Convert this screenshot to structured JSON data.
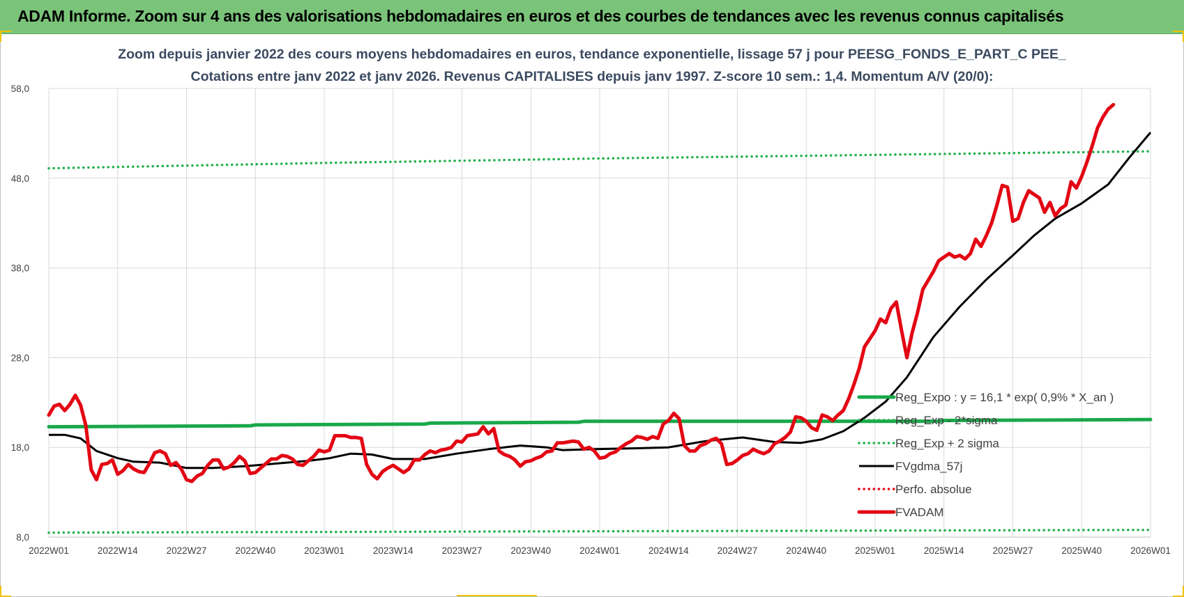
{
  "banner": {
    "title": "ADAM Informe. Zoom sur 4 ans des valorisations hebdomadaires en euros et des courbes de tendances avec les revenus connus capitalisés"
  },
  "colors": {
    "banner_bg": "#7ac47a",
    "subtitle": "#3b4a60",
    "reg_green": "#1aa84a",
    "dot_green": "#22b14c",
    "red": "#e30613",
    "black": "#000000",
    "grid": "#d9d9d9"
  },
  "chart_data": {
    "type": "line",
    "title": [
      "Zoom depuis janvier 2022 des cours moyens hebdomadaires en euros, tendance exponentielle, lissage 57 j pour PEESG_FONDS_E_PART_C PEE_",
      "Cotations entre janv 2022 et janv 2026. Revenus CAPITALISES depuis janv 1997. Z-score 10 sem.: 1,4. Momentum A/V (20/0):"
    ],
    "xlabel": "",
    "ylabel": "",
    "ylim": [
      8,
      58
    ],
    "yticks": [
      "58,0",
      "48,0",
      "38,0",
      "28,0",
      "18,0",
      "8,0"
    ],
    "ytick_values": [
      58,
      48,
      38,
      28,
      18,
      8
    ],
    "xticks": [
      "2022W01",
      "2022W14",
      "2022W27",
      "2022W40",
      "2023W01",
      "2023W14",
      "2023W27",
      "2023W40",
      "2024W01",
      "2024W14",
      "2024W27",
      "2024W40",
      "2025W01",
      "2025W14",
      "2025W27",
      "2025W40",
      "2026W01"
    ],
    "x_range_weeks": [
      0,
      208
    ],
    "grid": true,
    "legend_position": "lower-right",
    "series": [
      {
        "name": "Reg_Expo : y = 16,1 * exp( 0,9% *  X_an )",
        "style": "solid-thick",
        "color": "#1aa84a",
        "points": [
          [
            0,
            20.3
          ],
          [
            38,
            20.4
          ],
          [
            39,
            20.5
          ],
          [
            71,
            20.6
          ],
          [
            72,
            20.7
          ],
          [
            100,
            20.8
          ],
          [
            101,
            20.9
          ],
          [
            168,
            20.9
          ],
          [
            169,
            21.0
          ],
          [
            208,
            21.1
          ]
        ]
      },
      {
        "name": "Reg_Exp - 2*sigma",
        "style": "dotted",
        "color": "#22b14c",
        "points": [
          [
            0,
            8.5
          ],
          [
            208,
            8.8
          ]
        ]
      },
      {
        "name": "Reg_Exp + 2 sigma",
        "style": "dotted",
        "color": "#22b14c",
        "points": [
          [
            0,
            49.1
          ],
          [
            52,
            49.7
          ],
          [
            104,
            50.2
          ],
          [
            156,
            50.6
          ],
          [
            208,
            51.0
          ]
        ]
      },
      {
        "name": "FVgdma_57j",
        "style": "solid",
        "color": "#000000",
        "points": [
          [
            0,
            19.4
          ],
          [
            3,
            19.4
          ],
          [
            6,
            19.0
          ],
          [
            9,
            17.6
          ],
          [
            13,
            16.8
          ],
          [
            16,
            16.4
          ],
          [
            21,
            16.3
          ],
          [
            26,
            15.7
          ],
          [
            31,
            15.7
          ],
          [
            37,
            15.9
          ],
          [
            43,
            16.2
          ],
          [
            49,
            16.5
          ],
          [
            53,
            16.8
          ],
          [
            57,
            17.3
          ],
          [
            61,
            17.2
          ],
          [
            65,
            16.7
          ],
          [
            71,
            16.7
          ],
          [
            77,
            17.3
          ],
          [
            83,
            17.8
          ],
          [
            89,
            18.2
          ],
          [
            94,
            18.0
          ],
          [
            97,
            17.7
          ],
          [
            103,
            17.8
          ],
          [
            111,
            17.9
          ],
          [
            117,
            18.0
          ],
          [
            124,
            18.7
          ],
          [
            131,
            19.1
          ],
          [
            137,
            18.6
          ],
          [
            142,
            18.5
          ],
          [
            146,
            18.9
          ],
          [
            150,
            19.8
          ],
          [
            154,
            21.3
          ],
          [
            158,
            23.1
          ],
          [
            162,
            25.8
          ],
          [
            167,
            30.3
          ],
          [
            172,
            33.7
          ],
          [
            177,
            36.7
          ],
          [
            182,
            39.4
          ],
          [
            186,
            41.6
          ],
          [
            190,
            43.5
          ],
          [
            195,
            45.2
          ],
          [
            200,
            47.3
          ],
          [
            204,
            50.3
          ],
          [
            208,
            53.1
          ]
        ]
      },
      {
        "name": "Perfo. absolue",
        "style": "dotted",
        "color": "#e30613",
        "points": []
      },
      {
        "name": "FVADAM",
        "style": "solid-thick",
        "color": "#e30613",
        "points": [
          [
            0,
            21.6
          ],
          [
            1,
            22.6
          ],
          [
            2,
            22.8
          ],
          [
            3,
            22.1
          ],
          [
            4,
            22.8
          ],
          [
            5,
            23.8
          ],
          [
            6,
            22.7
          ],
          [
            7,
            20.4
          ],
          [
            8,
            15.5
          ],
          [
            9,
            14.4
          ],
          [
            10,
            16.1
          ],
          [
            11,
            16.2
          ],
          [
            12,
            16.6
          ],
          [
            13,
            15.0
          ],
          [
            14,
            15.4
          ],
          [
            15,
            16.1
          ],
          [
            16,
            15.6
          ],
          [
            17,
            15.3
          ],
          [
            18,
            15.2
          ],
          [
            19,
            16.2
          ],
          [
            20,
            17.4
          ],
          [
            21,
            17.6
          ],
          [
            22,
            17.3
          ],
          [
            23,
            16.0
          ],
          [
            24,
            16.3
          ],
          [
            25,
            15.6
          ],
          [
            26,
            14.4
          ],
          [
            27,
            14.2
          ],
          [
            28,
            14.8
          ],
          [
            29,
            15.1
          ],
          [
            30,
            16.0
          ],
          [
            31,
            16.6
          ],
          [
            32,
            16.6
          ],
          [
            33,
            15.6
          ],
          [
            34,
            15.8
          ],
          [
            35,
            16.3
          ],
          [
            36,
            17.0
          ],
          [
            37,
            16.5
          ],
          [
            38,
            15.1
          ],
          [
            39,
            15.2
          ],
          [
            40,
            15.7
          ],
          [
            41,
            16.2
          ],
          [
            42,
            16.7
          ],
          [
            43,
            16.7
          ],
          [
            44,
            17.1
          ],
          [
            45,
            17.0
          ],
          [
            46,
            16.7
          ],
          [
            47,
            16.1
          ],
          [
            48,
            16.0
          ],
          [
            49,
            16.5
          ],
          [
            50,
            17.0
          ],
          [
            51,
            17.7
          ],
          [
            52,
            17.5
          ],
          [
            53,
            17.7
          ],
          [
            54,
            19.3
          ],
          [
            55,
            19.3
          ],
          [
            56,
            19.3
          ],
          [
            57,
            19.1
          ],
          [
            58,
            19.1
          ],
          [
            59,
            19.0
          ],
          [
            60,
            16.1
          ],
          [
            61,
            15.0
          ],
          [
            62,
            14.5
          ],
          [
            63,
            15.3
          ],
          [
            64,
            15.7
          ],
          [
            65,
            16.0
          ],
          [
            66,
            15.6
          ],
          [
            67,
            15.2
          ],
          [
            68,
            15.6
          ],
          [
            69,
            16.6
          ],
          [
            70,
            16.6
          ],
          [
            71,
            17.2
          ],
          [
            72,
            17.6
          ],
          [
            73,
            17.4
          ],
          [
            74,
            17.7
          ],
          [
            75,
            17.8
          ],
          [
            76,
            18.0
          ],
          [
            77,
            18.7
          ],
          [
            78,
            18.6
          ],
          [
            79,
            19.3
          ],
          [
            80,
            19.4
          ],
          [
            81,
            19.5
          ],
          [
            82,
            20.3
          ],
          [
            83,
            19.5
          ],
          [
            84,
            20.1
          ],
          [
            85,
            17.6
          ],
          [
            86,
            17.2
          ],
          [
            87,
            17.0
          ],
          [
            88,
            16.6
          ],
          [
            89,
            15.9
          ],
          [
            90,
            16.4
          ],
          [
            91,
            16.5
          ],
          [
            92,
            16.8
          ],
          [
            93,
            17.0
          ],
          [
            94,
            17.5
          ],
          [
            95,
            17.6
          ],
          [
            96,
            18.5
          ],
          [
            97,
            18.5
          ],
          [
            98,
            18.6
          ],
          [
            99,
            18.7
          ],
          [
            100,
            18.6
          ],
          [
            101,
            17.8
          ],
          [
            102,
            18.0
          ],
          [
            103,
            17.6
          ],
          [
            104,
            16.8
          ],
          [
            105,
            16.9
          ],
          [
            106,
            17.3
          ],
          [
            107,
            17.5
          ],
          [
            108,
            18.0
          ],
          [
            109,
            18.4
          ],
          [
            110,
            18.7
          ],
          [
            111,
            19.2
          ],
          [
            112,
            19.1
          ],
          [
            113,
            18.9
          ],
          [
            114,
            19.2
          ],
          [
            115,
            19.0
          ],
          [
            116,
            20.6
          ],
          [
            117,
            21.0
          ],
          [
            118,
            21.8
          ],
          [
            119,
            21.2
          ],
          [
            120,
            18.2
          ],
          [
            121,
            17.6
          ],
          [
            122,
            17.6
          ],
          [
            123,
            18.2
          ],
          [
            124,
            18.4
          ],
          [
            125,
            18.8
          ],
          [
            126,
            19.0
          ],
          [
            127,
            18.4
          ],
          [
            128,
            16.1
          ],
          [
            129,
            16.2
          ],
          [
            130,
            16.6
          ],
          [
            131,
            17.1
          ],
          [
            132,
            17.3
          ],
          [
            133,
            17.8
          ],
          [
            134,
            17.5
          ],
          [
            135,
            17.3
          ],
          [
            136,
            17.6
          ],
          [
            137,
            18.4
          ],
          [
            138,
            18.7
          ],
          [
            139,
            19.1
          ],
          [
            140,
            19.7
          ],
          [
            141,
            21.4
          ],
          [
            142,
            21.3
          ],
          [
            143,
            20.9
          ],
          [
            144,
            20.2
          ],
          [
            145,
            19.9
          ],
          [
            146,
            21.6
          ],
          [
            147,
            21.4
          ],
          [
            148,
            21.0
          ],
          [
            149,
            21.6
          ],
          [
            150,
            22.1
          ],
          [
            151,
            23.4
          ],
          [
            152,
            25.0
          ],
          [
            153,
            26.8
          ],
          [
            154,
            29.2
          ],
          [
            155,
            30.1
          ],
          [
            156,
            31.0
          ],
          [
            157,
            32.3
          ],
          [
            158,
            31.9
          ],
          [
            159,
            33.5
          ],
          [
            160,
            34.2
          ],
          [
            161,
            31.0
          ],
          [
            162,
            28.0
          ],
          [
            163,
            30.8
          ],
          [
            164,
            33.0
          ],
          [
            165,
            35.6
          ],
          [
            166,
            36.6
          ],
          [
            167,
            37.6
          ],
          [
            168,
            38.8
          ],
          [
            169,
            39.2
          ],
          [
            170,
            39.6
          ],
          [
            171,
            39.2
          ],
          [
            172,
            39.4
          ],
          [
            173,
            39.0
          ],
          [
            174,
            39.6
          ],
          [
            175,
            41.2
          ],
          [
            176,
            40.4
          ],
          [
            177,
            41.6
          ],
          [
            178,
            43.0
          ],
          [
            179,
            45.0
          ],
          [
            180,
            47.2
          ],
          [
            181,
            47.0
          ],
          [
            182,
            43.2
          ],
          [
            183,
            43.5
          ],
          [
            184,
            45.3
          ],
          [
            185,
            46.6
          ],
          [
            186,
            46.2
          ],
          [
            187,
            45.8
          ],
          [
            188,
            44.2
          ],
          [
            189,
            45.3
          ],
          [
            190,
            43.8
          ],
          [
            191,
            44.6
          ],
          [
            192,
            45.0
          ],
          [
            193,
            47.6
          ],
          [
            194,
            46.9
          ],
          [
            195,
            48.2
          ],
          [
            196,
            49.8
          ],
          [
            197,
            51.6
          ],
          [
            198,
            53.6
          ],
          [
            199,
            54.8
          ],
          [
            200,
            55.7
          ],
          [
            201,
            56.2
          ]
        ]
      }
    ]
  }
}
